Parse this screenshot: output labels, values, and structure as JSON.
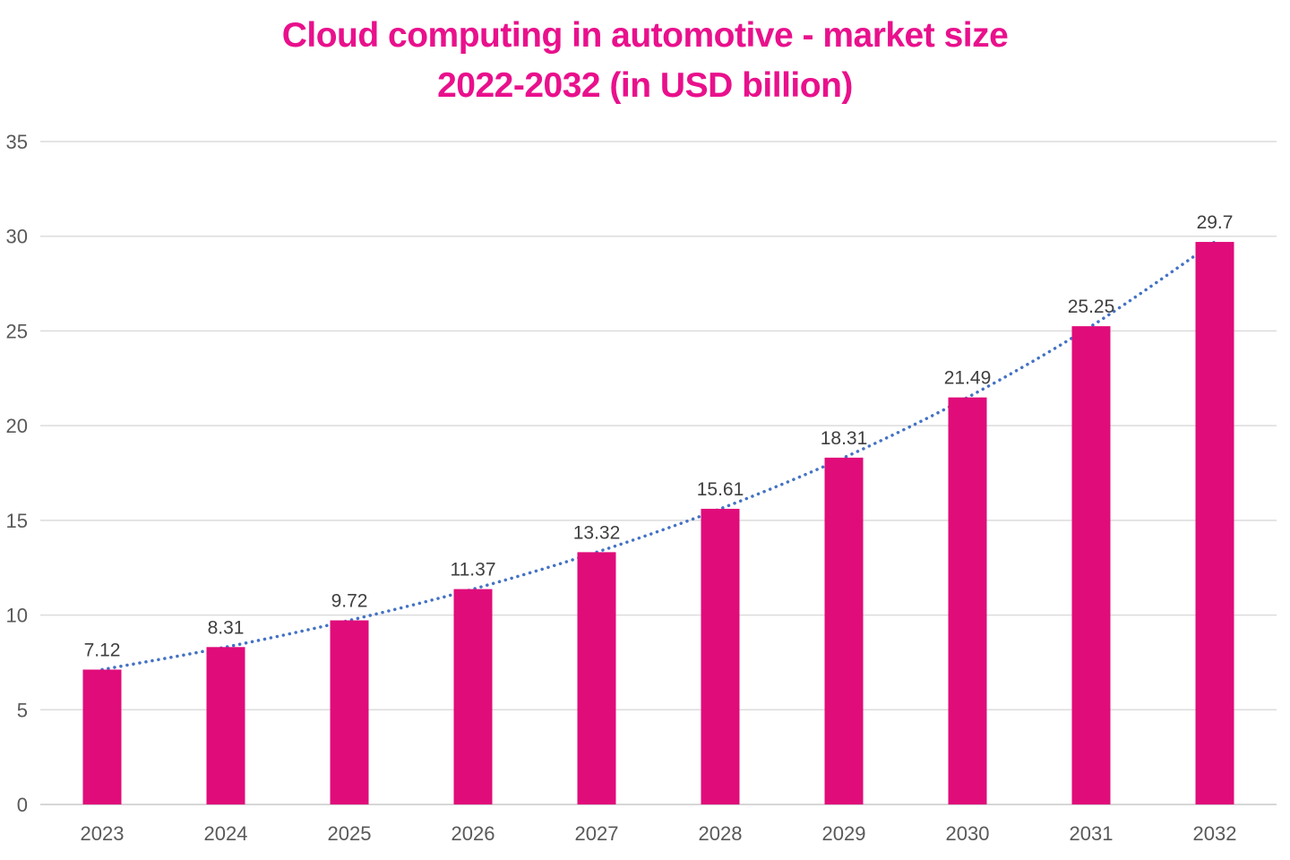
{
  "colors": {
    "background": "#FFFFFF",
    "title": "#E9108C",
    "bar": "#E00C7A",
    "trend": "#4472C4",
    "grid": "#DCDCDC",
    "axis_line": "#C9C9C9",
    "axis_tick": "#595959",
    "data_label": "#3F3F3F"
  },
  "chart_data": {
    "type": "bar",
    "title": "Cloud computing in automotive - market size 2022-2032 (in USD billion)",
    "title_lines": [
      "Cloud computing in automotive - market size",
      "2022-2032 (in USD billion)"
    ],
    "categories": [
      "2023",
      "2024",
      "2025",
      "2026",
      "2027",
      "2028",
      "2029",
      "2030",
      "2031",
      "2032"
    ],
    "values": [
      7.12,
      8.31,
      9.72,
      11.37,
      13.32,
      15.61,
      18.31,
      21.49,
      25.25,
      29.7
    ],
    "value_labels": [
      "7.12",
      "8.31",
      "9.72",
      "11.37",
      "13.32",
      "15.61",
      "18.31",
      "21.49",
      "25.25",
      "29.7"
    ],
    "xlabel": "",
    "ylabel": "",
    "ylim": [
      0,
      35
    ],
    "yticks": [
      0,
      5,
      10,
      15,
      20,
      25,
      30,
      35
    ],
    "grid": "horizontal",
    "legend_position": "none",
    "data_labels": true,
    "trendline": {
      "style": "dotted",
      "shape": "smooth-curve-through-bar-tops",
      "color": "#4472C4"
    }
  }
}
